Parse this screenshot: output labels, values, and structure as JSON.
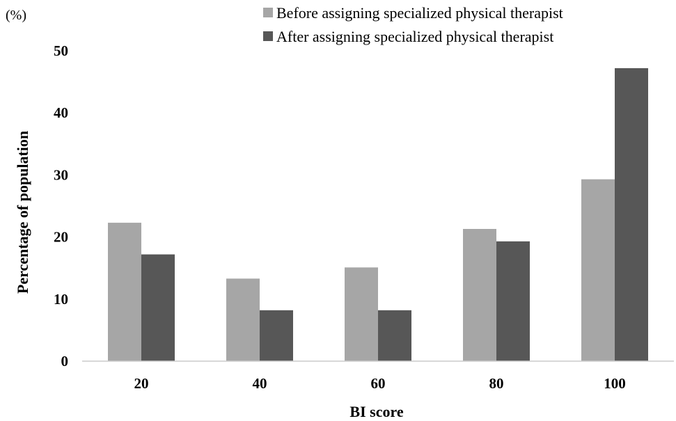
{
  "chart_data": {
    "type": "bar",
    "categories": [
      "20",
      "40",
      "60",
      "80",
      "100"
    ],
    "series": [
      {
        "name": "Before assigning specialized physical therapist",
        "values": [
          22.3,
          13.3,
          15.1,
          21.3,
          29.3
        ],
        "color": "#a6a6a6"
      },
      {
        "name": "After assigning specialized physical therapist",
        "values": [
          17.2,
          8.2,
          8.2,
          19.3,
          47.2
        ],
        "color": "#575757"
      }
    ],
    "xlabel": "BI score",
    "ylabel": "Percentage of population",
    "unit_label": "(%)",
    "ylim": [
      0,
      50
    ],
    "yticks": [
      0,
      10,
      20,
      30,
      40,
      50
    ],
    "legend_position": "top-right",
    "grid": false
  }
}
